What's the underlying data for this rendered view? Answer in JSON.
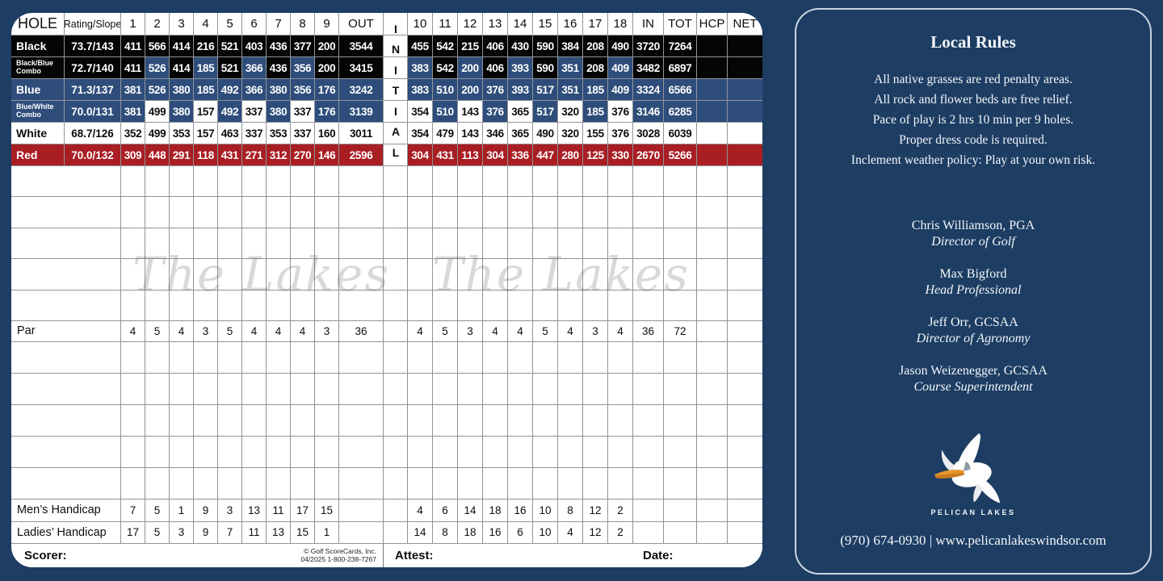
{
  "colors": {
    "background": "#1d3d63",
    "black_tee": "#050505",
    "blue_tee": "#2e4d7b",
    "red_tee": "#a91e23",
    "white_tee": "#ffffff",
    "grid": "#8f9499",
    "panel_border": "#c9d5e2",
    "beak_orange": "#e8952d"
  },
  "scorecard": {
    "header": {
      "hole": "HOLE",
      "rating_slope": "Rating/Slope",
      "front_holes": [
        "1",
        "2",
        "3",
        "4",
        "5",
        "6",
        "7",
        "8",
        "9"
      ],
      "out": "OUT",
      "initial": "INITIAL",
      "back_holes": [
        "10",
        "11",
        "12",
        "13",
        "14",
        "15",
        "16",
        "17",
        "18"
      ],
      "in": "IN",
      "tot": "TOT",
      "hcp": "HCP",
      "net": "NET"
    },
    "tees": [
      {
        "name": "Black",
        "rating": "73.7/143",
        "style": "black",
        "front": [
          411,
          566,
          414,
          216,
          521,
          403,
          436,
          377,
          200
        ],
        "out": 3544,
        "back": [
          455,
          542,
          215,
          406,
          430,
          590,
          384,
          208,
          490
        ],
        "in": 3720,
        "total": 7264
      },
      {
        "name": "Black/Blue\nCombo",
        "rating": "72.7/140",
        "style": "black",
        "front": [
          411,
          526,
          414,
          185,
          521,
          366,
          436,
          356,
          200
        ],
        "out": 3415,
        "back": [
          383,
          542,
          200,
          406,
          393,
          590,
          351,
          208,
          409
        ],
        "in": 3482,
        "total": 6897,
        "highlight": {
          "holes": [
            2,
            4,
            6,
            8,
            10,
            12,
            14,
            16,
            18
          ],
          "style": "blue"
        }
      },
      {
        "name": "Blue",
        "rating": "71.3/137",
        "style": "blue",
        "front": [
          381,
          526,
          380,
          185,
          492,
          366,
          380,
          356,
          176
        ],
        "out": 3242,
        "back": [
          383,
          510,
          200,
          376,
          393,
          517,
          351,
          185,
          409
        ],
        "in": 3324,
        "total": 6566
      },
      {
        "name": "Blue/White\nCombo",
        "rating": "70.0/131",
        "style": "blue",
        "front": [
          381,
          499,
          380,
          157,
          492,
          337,
          380,
          337,
          176
        ],
        "out": 3139,
        "back": [
          354,
          510,
          143,
          376,
          365,
          517,
          320,
          185,
          376
        ],
        "in": 3146,
        "total": 6285,
        "highlight": {
          "holes": [
            2,
            4,
            6,
            8,
            10,
            12,
            14,
            16,
            18
          ],
          "style": "white"
        }
      },
      {
        "name": "White",
        "rating": "68.7/126",
        "style": "white",
        "front": [
          352,
          499,
          353,
          157,
          463,
          337,
          353,
          337,
          160
        ],
        "out": 3011,
        "back": [
          354,
          479,
          143,
          346,
          365,
          490,
          320,
          155,
          376
        ],
        "in": 3028,
        "total": 6039
      },
      {
        "name": "Red",
        "rating": "70.0/132",
        "style": "red",
        "front": [
          309,
          448,
          291,
          118,
          431,
          271,
          312,
          270,
          146
        ],
        "out": 2596,
        "back": [
          304,
          431,
          113,
          304,
          336,
          447,
          280,
          125,
          330
        ],
        "in": 2670,
        "total": 5266
      }
    ],
    "par": {
      "label": "Par",
      "front": [
        4,
        5,
        4,
        3,
        5,
        4,
        4,
        4,
        3
      ],
      "out": 36,
      "back": [
        4,
        5,
        3,
        4,
        4,
        5,
        4,
        3,
        4
      ],
      "in": 36,
      "total": 72
    },
    "mens_handicap": {
      "label": "Men’s Handicap",
      "front": [
        7,
        5,
        1,
        9,
        3,
        13,
        11,
        17,
        15
      ],
      "back": [
        4,
        6,
        14,
        18,
        16,
        10,
        8,
        12,
        2
      ]
    },
    "ladies_handicap": {
      "label": "Ladies’ Handicap",
      "front": [
        17,
        5,
        3,
        9,
        7,
        11,
        13,
        15,
        1
      ],
      "back": [
        14,
        8,
        18,
        16,
        6,
        10,
        4,
        12,
        2
      ]
    },
    "blank_score_rows": {
      "above_par": 5,
      "below_par": 5
    },
    "watermark": "The Lakes",
    "footer": {
      "scorer": "Scorer:",
      "copyright1": "©  Golf ScoreCards, Inc.",
      "copyright2": "04/2025   1-800-238-7267",
      "attest": "Attest:",
      "date": "Date:"
    }
  },
  "panel": {
    "title": "Local Rules",
    "rules": [
      "All native grasses are red penalty areas.",
      "All rock and flower beds are free relief.",
      "Pace of play is 2 hrs 10 min per 9 holes.",
      "Proper dress code is required.",
      "Inclement weather policy: Play at your own risk."
    ],
    "staff": [
      {
        "name": "Chris Williamson, PGA",
        "title": "Director of Golf"
      },
      {
        "name": "Max Bigford",
        "title": "Head Professional"
      },
      {
        "name": "Jeff Orr, GCSAA",
        "title": "Director of Agronomy"
      },
      {
        "name": "Jason Weizenegger, GCSAA",
        "title": "Course Superintendent"
      }
    ],
    "logo_text": "PELICAN LAKES",
    "contact": "(970) 674-0930 | www.pelicanlakeswindsor.com"
  }
}
